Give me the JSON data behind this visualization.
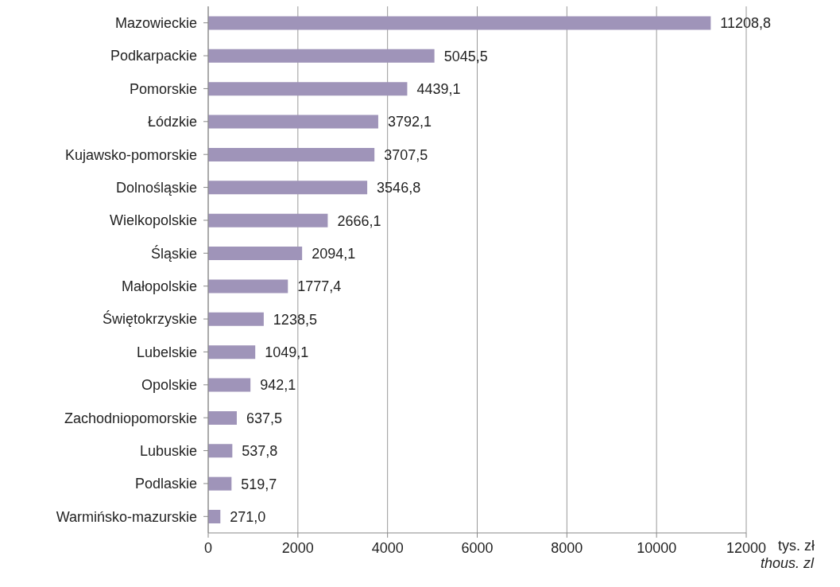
{
  "chart_data": {
    "type": "bar",
    "orientation": "horizontal",
    "xlabel": "tys. zł",
    "annotations": [
      "thous. zl"
    ],
    "categories": [
      "Mazowieckie",
      "Podkarpackie",
      "Pomorskie",
      "Łódzkie",
      "Kujawsko-pomorskie",
      "Dolnośląskie",
      "Wielkopolskie",
      "Śląskie",
      "Małopolskie",
      "Świętokrzyskie",
      "Lubelskie",
      "Opolskie",
      "Zachodniopomorskie",
      "Lubuskie",
      "Podlaskie",
      "Warmińsko-mazurskie"
    ],
    "values": [
      11208.8,
      5045.5,
      4439.1,
      3792.1,
      3707.5,
      3546.8,
      2666.1,
      2094.1,
      1777.4,
      1238.5,
      1049.1,
      942.1,
      637.5,
      537.8,
      519.7,
      271.0
    ],
    "value_labels": [
      "11208,8",
      "5045,5",
      "4439,1",
      "3792,1",
      "3707,5",
      "3546,8",
      "2666,1",
      "2094,1",
      "1777,4",
      "1238,5",
      "1049,1",
      "942,1",
      "637,5",
      "537,8",
      "519,7",
      "271,0"
    ],
    "color": "#9f94b9",
    "xlim": [
      0,
      12000
    ],
    "xticks": [
      0,
      2000,
      4000,
      6000,
      8000,
      10000,
      12000
    ],
    "grid": "x"
  }
}
